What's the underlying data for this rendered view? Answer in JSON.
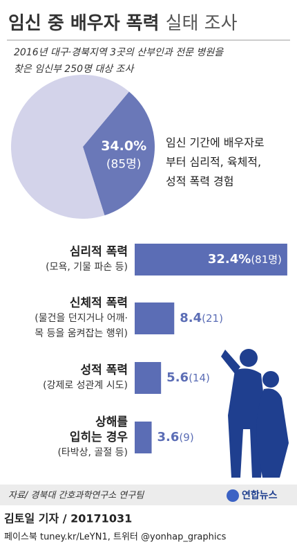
{
  "header": {
    "title_bold": "임신 중 배우자 폭력",
    "title_light": "실태 조사",
    "subtitle": [
      "2016년 대구·경북지역 3곳의 산부인과 전문 병원을",
      "찾은 임신부 250명 대상 조사"
    ]
  },
  "chart_data": [
    {
      "type": "pie",
      "values": [
        34.0,
        66.0
      ],
      "value_labels": [
        "34.0%",
        null
      ],
      "count_label": "(85명)",
      "colors": [
        "#6a78b8",
        "#d3d3ea"
      ],
      "annotation": [
        "임신 기간에 배우자로",
        "부터 심리적, 육체적,",
        "성적 폭력 경험"
      ]
    },
    {
      "type": "bar",
      "orientation": "horizontal",
      "categories": [
        [
          "심리적 폭력"
        ],
        [
          "신체적 폭력"
        ],
        [
          "성적 폭력"
        ],
        [
          "상해를",
          "입히는 경우"
        ]
      ],
      "sublabels": [
        [
          "(모욕, 기물 파손 등)"
        ],
        [
          "(물건을 던지거나 어깨·",
          "목 등을 움켜잡는 행위)"
        ],
        [
          "(강제로 성관계 시도)"
        ],
        [
          "(타박상, 골절 등)"
        ]
      ],
      "values": [
        32.4,
        8.4,
        5.6,
        3.6
      ],
      "value_labels": [
        "32.4%",
        "8.4",
        "5.6",
        "3.6"
      ],
      "count_labels": [
        "(81명)",
        "(21)",
        "(14)",
        "(9)"
      ],
      "color": "#5b6db5",
      "xlim": [
        0,
        33
      ]
    }
  ],
  "footer": {
    "source": "자료/ 경북대 간호과학연구소 연구팀",
    "logo": "연합뉴스",
    "byline": "김토일 기자 / 20171031",
    "social": "페이스북 tuney.kr/LeYN1, 트위터 @yonhap_graphics"
  }
}
